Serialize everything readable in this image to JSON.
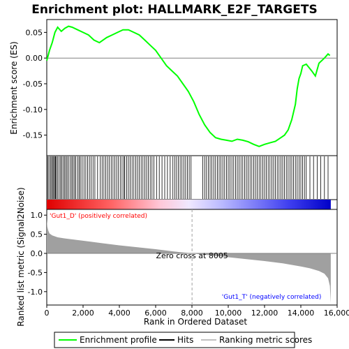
{
  "chart_data": {
    "type": "line",
    "title": "Enrichment plot: HALLMARK_E2F_TARGETS",
    "es_panel": {
      "ylabel": "Enrichment score (ES)",
      "ylim": [
        -0.19,
        0.075
      ],
      "yticks": [
        0.05,
        0.0,
        -0.05,
        -0.1,
        -0.15
      ],
      "ytick_labels": [
        "0.05",
        "0.00",
        "-0.05",
        "-0.10",
        "-0.15"
      ],
      "line_color": "#00ff00",
      "x": [
        0,
        150,
        300,
        450,
        600,
        800,
        1000,
        1200,
        1400,
        1700,
        2000,
        2300,
        2600,
        2900,
        3100,
        3300,
        3600,
        3900,
        4200,
        4500,
        4800,
        5100,
        5400,
        5700,
        6000,
        6300,
        6600,
        6900,
        7200,
        7500,
        7800,
        8100,
        8400,
        8700,
        9000,
        9300,
        9600,
        9900,
        10200,
        10500,
        10800,
        11100,
        11400,
        11700,
        12000,
        12300,
        12600,
        12900,
        13100,
        13300,
        13500,
        13700,
        13800,
        13900,
        14000,
        14100,
        14300,
        14600,
        14800,
        15000,
        15300,
        15500,
        15600
      ],
      "y": [
        -0.005,
        0.015,
        0.03,
        0.05,
        0.06,
        0.052,
        0.058,
        0.062,
        0.06,
        0.055,
        0.05,
        0.045,
        0.035,
        0.03,
        0.035,
        0.04,
        0.045,
        0.05,
        0.055,
        0.055,
        0.05,
        0.045,
        0.035,
        0.025,
        0.015,
        0.0,
        -0.015,
        -0.025,
        -0.035,
        -0.05,
        -0.065,
        -0.085,
        -0.11,
        -0.13,
        -0.145,
        -0.155,
        -0.158,
        -0.16,
        -0.162,
        -0.158,
        -0.16,
        -0.163,
        -0.168,
        -0.172,
        -0.168,
        -0.165,
        -0.162,
        -0.155,
        -0.15,
        -0.14,
        -0.12,
        -0.09,
        -0.06,
        -0.04,
        -0.03,
        -0.015,
        -0.012,
        -0.025,
        -0.035,
        -0.01,
        0.0,
        0.008,
        0.005
      ]
    },
    "hits_panel": {
      "positions": [
        50,
        120,
        200,
        260,
        330,
        380,
        430,
        480,
        520,
        600,
        680,
        760,
        820,
        900,
        980,
        1050,
        1120,
        1200,
        1300,
        1380,
        1450,
        1530,
        1600,
        1700,
        1780,
        1850,
        1950,
        2050,
        2150,
        2250,
        2350,
        2450,
        2550,
        2650,
        2800,
        2950,
        3050,
        3150,
        3250,
        3350,
        3450,
        3550,
        3650,
        3750,
        3850,
        3950,
        4050,
        4150,
        4250,
        4300,
        4400,
        4500,
        4600,
        4700,
        4800,
        4900,
        5000,
        5100,
        5200,
        5300,
        5400,
        5500,
        5600,
        5700,
        5800,
        5900,
        6050,
        6200,
        6350,
        6500,
        6650,
        6800,
        6950,
        7050,
        7150,
        7250,
        7350,
        7450,
        7550,
        7650,
        7750,
        7850,
        7950,
        8600,
        8700,
        8800,
        8900,
        9000,
        9100,
        9200,
        9300,
        9400,
        9500,
        9600,
        9700,
        9800,
        9900,
        10000,
        10100,
        10200,
        10300,
        10400,
        10500,
        10600,
        10700,
        10800,
        10900,
        11000,
        11100,
        11200,
        11300,
        11400,
        11500,
        11600,
        11700,
        11800,
        11900,
        12000,
        12100,
        12200,
        12300,
        12400,
        12500,
        12600,
        12700,
        12800,
        12900,
        13000,
        13100,
        13200,
        13300,
        13400,
        13500,
        13600,
        13700,
        13800,
        13900,
        14000,
        14100,
        14200,
        14300,
        14500,
        14700,
        14900,
        15100,
        15300,
        15500
      ]
    },
    "metric_panel": {
      "ylabel": "Ranked list metric (Signal2Noise)",
      "ylim": [
        -1.35,
        1.15
      ],
      "yticks": [
        1.0,
        0.5,
        0.0,
        -0.5,
        -1.0
      ],
      "ytick_labels": [
        "1.0",
        "0.5",
        "0.0",
        "-0.5",
        "-1.0"
      ],
      "x": [
        0,
        30,
        80,
        150,
        300,
        600,
        1000,
        2000,
        3000,
        4000,
        5000,
        6000,
        7000,
        8005,
        9000,
        10000,
        11000,
        12000,
        13000,
        14000,
        14500,
        15000,
        15300,
        15500,
        15600,
        15650
      ],
      "y": [
        0.9,
        0.7,
        0.6,
        0.52,
        0.47,
        0.42,
        0.39,
        0.33,
        0.27,
        0.21,
        0.16,
        0.11,
        0.05,
        0.0,
        -0.05,
        -0.1,
        -0.15,
        -0.2,
        -0.26,
        -0.34,
        -0.39,
        -0.46,
        -0.53,
        -0.65,
        -0.85,
        -1.3
      ],
      "zero_cross_label": "Zero cross at 8005",
      "zero_cross_x": 8005,
      "pos_label": "'Gut1_D' (positively correlated)",
      "neg_label": "'Gut1_T' (negatively correlated)"
    },
    "xaxis": {
      "xlabel": "Rank in Ordered Dataset",
      "xlim": [
        0,
        16000
      ],
      "xticks": [
        0,
        2000,
        4000,
        6000,
        8000,
        10000,
        12000,
        14000,
        16000
      ],
      "xtick_labels": [
        "0",
        "2,000",
        "4,000",
        "6,000",
        "8,000",
        "10,000",
        "12,000",
        "14,000",
        "16,000"
      ],
      "data_end": 15650
    },
    "legend": {
      "placement": "bottom",
      "entries": [
        {
          "label": "Enrichment profile",
          "color": "#00ff00"
        },
        {
          "label": "Hits",
          "color": "#000000"
        },
        {
          "label": "Ranking metric scores",
          "color": "#c0c0c0"
        }
      ]
    },
    "colors": {
      "positive": "#ff0000",
      "negative": "#0000ff",
      "zero_line": "#808080",
      "metric_fill": "#a0a0a0",
      "pos_label": "#ff0000",
      "neg_label": "#0000ff"
    }
  }
}
